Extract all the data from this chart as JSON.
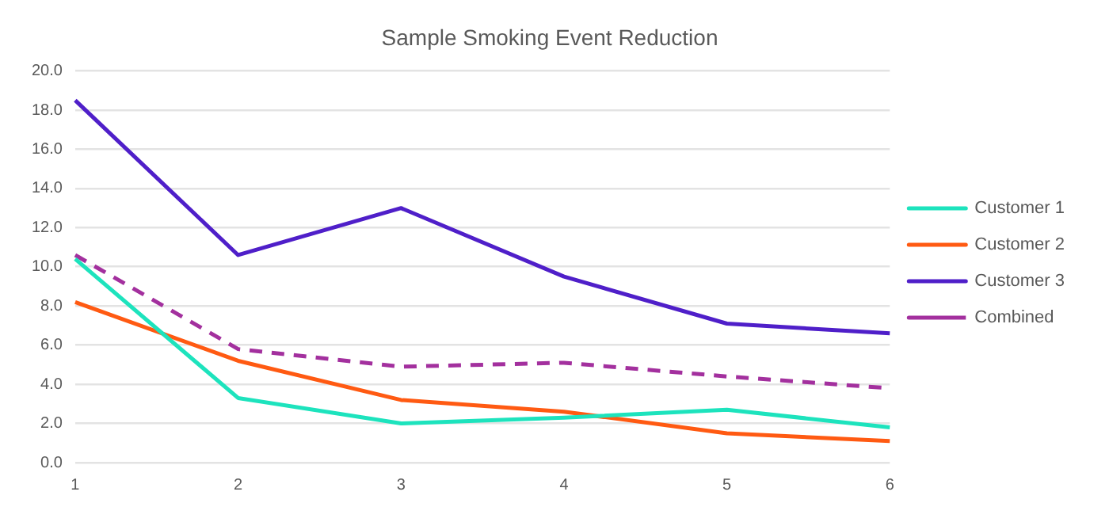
{
  "chart_data": {
    "type": "line",
    "title": "Sample Smoking Event Reduction",
    "categories": [
      "1",
      "2",
      "3",
      "4",
      "5",
      "6"
    ],
    "series": [
      {
        "name": "Customer 1",
        "color": "#1de3bd",
        "values": [
          10.4,
          3.3,
          2.0,
          2.3,
          2.7,
          1.8
        ]
      },
      {
        "name": "Customer 2",
        "color": "#ff5a12",
        "values": [
          8.2,
          5.2,
          3.2,
          2.6,
          1.5,
          1.1
        ]
      },
      {
        "name": "Customer 3",
        "color": "#4f1fc9",
        "values": [
          18.5,
          10.6,
          13.0,
          9.5,
          7.1,
          6.6
        ]
      },
      {
        "name": "Combined",
        "color": "#a3309e",
        "line_style": "dashed",
        "values": [
          10.6,
          5.8,
          4.9,
          5.1,
          4.4,
          3.8
        ]
      }
    ],
    "ylim": [
      0,
      20
    ],
    "yticks": [
      {
        "value": 0,
        "label": "0.0"
      },
      {
        "value": 2,
        "label": "2.0"
      },
      {
        "value": 4,
        "label": "4.0"
      },
      {
        "value": 6,
        "label": "6.0"
      },
      {
        "value": 8,
        "label": "8.0"
      },
      {
        "value": 10,
        "label": "10.0"
      },
      {
        "value": 12,
        "label": "12.0"
      },
      {
        "value": 14,
        "label": "14.0"
      },
      {
        "value": 16,
        "label": "16.0"
      },
      {
        "value": 18,
        "label": "18.0"
      },
      {
        "value": 20,
        "label": "20.0"
      }
    ],
    "grid": "y",
    "legend": "right",
    "marker": "none",
    "line_style": "solid"
  }
}
